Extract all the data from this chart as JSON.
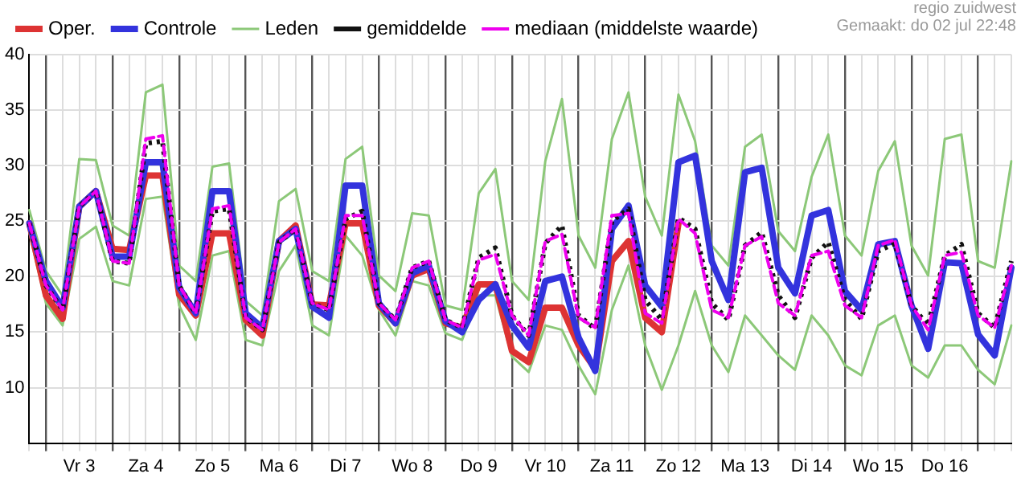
{
  "chart_data": {
    "type": "line",
    "categories": [
      null,
      null,
      null,
      "Vr 3",
      null,
      null,
      null,
      "Za 4",
      null,
      null,
      null,
      "Zo 5",
      null,
      null,
      null,
      "Ma 6",
      null,
      null,
      null,
      "Di 7",
      null,
      null,
      null,
      "Wo 8",
      null,
      null,
      null,
      "Do 9",
      null,
      null,
      null,
      "Vr 10",
      null,
      null,
      null,
      "Za 11",
      null,
      null,
      null,
      "Zo 12",
      null,
      null,
      null,
      "Ma 13",
      null,
      null,
      null,
      "Di 14",
      null,
      null,
      null,
      "Wo 15",
      null,
      null,
      null,
      "Do 16",
      null,
      null,
      null,
      null
    ],
    "ylim": [
      5,
      40
    ],
    "yticks": [
      10,
      15,
      20,
      25,
      30,
      35,
      40
    ],
    "grid": true,
    "legend": "top",
    "series": [
      {
        "name": "Oper.",
        "color": "#dd3333",
        "line_style": "solid",
        "values": [
          24.8,
          18.3,
          16.2,
          26.3,
          27.7,
          22.5,
          22.4,
          29.1,
          29.1,
          18.4,
          16.5,
          23.9,
          23.9,
          16.1,
          14.7,
          23.2,
          24.6,
          17.5,
          17.4,
          24.8,
          24.8,
          17.4,
          15.8,
          20.1,
          20.7,
          15.8,
          15.4,
          19.3,
          19.3,
          13.3,
          12.3,
          17.2,
          17.2,
          13.8,
          11.7,
          21.4,
          23.2,
          16.3,
          15,
          24.8,
          null,
          null,
          null,
          null,
          null,
          null,
          null,
          null,
          null,
          null,
          null,
          null,
          null,
          null,
          null,
          null,
          null,
          null,
          null,
          null
        ]
      },
      {
        "name": "Controle",
        "color": "#3333dd",
        "line_style": "solid",
        "values": [
          24.8,
          19.6,
          17.2,
          26.3,
          27.7,
          21.8,
          21.8,
          30.3,
          30.3,
          19,
          16.7,
          27.7,
          27.7,
          16.7,
          15.4,
          23.2,
          24.3,
          17.3,
          16.3,
          28.2,
          28.2,
          17.6,
          15.8,
          20.3,
          21,
          16,
          15,
          17.9,
          19.3,
          15.6,
          13.6,
          19.6,
          20,
          14.5,
          11.5,
          24.3,
          26.4,
          19.2,
          17.3,
          30.3,
          30.9,
          21.4,
          17.9,
          29.4,
          29.8,
          20.8,
          18.5,
          25.5,
          26,
          18.7,
          17,
          22.9,
          23.2,
          17.4,
          13.5,
          21.3,
          21.2,
          14.8,
          12.9,
          20.8
        ]
      },
      {
        "color": "#8cc878",
        "values": [
          24,
          17.6,
          15.6,
          23.4,
          24.5,
          19.6,
          19.2,
          27,
          27.2,
          17.4,
          14.3,
          21.9,
          22.3,
          14.3,
          13.8,
          20.5,
          22.8,
          15.6,
          14.7,
          23.7,
          21.9,
          17,
          14.7,
          19.6,
          19.2,
          14.9,
          14.3,
          18.3,
          18.3,
          12.8,
          11.4,
          15.6,
          15.2,
          12,
          9.4,
          17,
          21,
          13.8,
          9.8,
          13.8,
          18.7,
          13.8,
          11.4,
          16.5,
          14.7,
          12.9,
          11.6,
          16.5,
          14.7,
          12,
          11.1,
          15.6,
          16.5,
          12,
          10.9,
          13.8,
          13.8,
          11.6,
          10.3,
          15.6
        ]
      },
      {
        "name": "Leden",
        "color": "#8cc878",
        "values": [
          26,
          20.5,
          18.3,
          30.6,
          30.5,
          24.6,
          23.7,
          36.6,
          37.3,
          21,
          19.6,
          29.9,
          30.2,
          17.8,
          16.5,
          26.8,
          27.9,
          20.5,
          19.6,
          30.6,
          31.7,
          20.1,
          18.7,
          25.7,
          25.5,
          17.4,
          17,
          27.5,
          29.7,
          19.6,
          17.9,
          30.4,
          36,
          23.7,
          20.8,
          32.4,
          36.6,
          27.2,
          23.7,
          36.4,
          32.2,
          22.8,
          21,
          31.7,
          32.8,
          24.1,
          22.3,
          29,
          32.8,
          23.7,
          21.9,
          29.5,
          32.2,
          22.8,
          20.1,
          32.4,
          32.8,
          21.4,
          20.8,
          30.4
        ]
      },
      {
        "name": "gemiddelde",
        "color": "#111111",
        "line_style": "dotted",
        "values": [
          24.8,
          19.2,
          17,
          26.3,
          27.7,
          21.4,
          21.2,
          32,
          32.2,
          19.2,
          16.7,
          25.9,
          26.1,
          16.3,
          15.2,
          23.1,
          24.3,
          17.6,
          17,
          25.2,
          25.9,
          17.6,
          16.1,
          20.8,
          21.4,
          16.1,
          15.4,
          21.7,
          22.6,
          16.5,
          14.7,
          23,
          24.6,
          16.5,
          15.3,
          25,
          26.1,
          17.9,
          16.1,
          25.3,
          24.3,
          17.6,
          16.1,
          22.8,
          24,
          18.3,
          16.3,
          21.7,
          23.1,
          17.9,
          16.2,
          22.3,
          23,
          17.4,
          15.6,
          21.9,
          22.9,
          16.7,
          15.4,
          21.4
        ]
      },
      {
        "name": "mediaan (middelste waarde)",
        "color": "#ee00ee",
        "line_style": "dashed",
        "values": [
          24.8,
          19.2,
          17,
          26.3,
          27.7,
          21.4,
          21.2,
          32.4,
          32.7,
          19.2,
          16.7,
          26.1,
          26.4,
          16.3,
          15.2,
          23.1,
          24.3,
          17.6,
          17,
          25.5,
          25.5,
          17.6,
          16.1,
          20.8,
          21.4,
          16.1,
          15.4,
          21.5,
          22,
          16.5,
          14.7,
          23.2,
          23.8,
          16.3,
          15.4,
          25.5,
          25.7,
          16.7,
          15.8,
          25.2,
          23.9,
          17,
          16.3,
          22.8,
          23.6,
          17.6,
          16.5,
          21.9,
          22.3,
          17.4,
          16.3,
          22.8,
          23.3,
          17.4,
          15.2,
          21.9,
          22.2,
          16.5,
          15.4,
          21
        ]
      }
    ],
    "annotations": [
      "regio zuidwest",
      "Gemaakt: do 02 jul 22:48"
    ]
  }
}
